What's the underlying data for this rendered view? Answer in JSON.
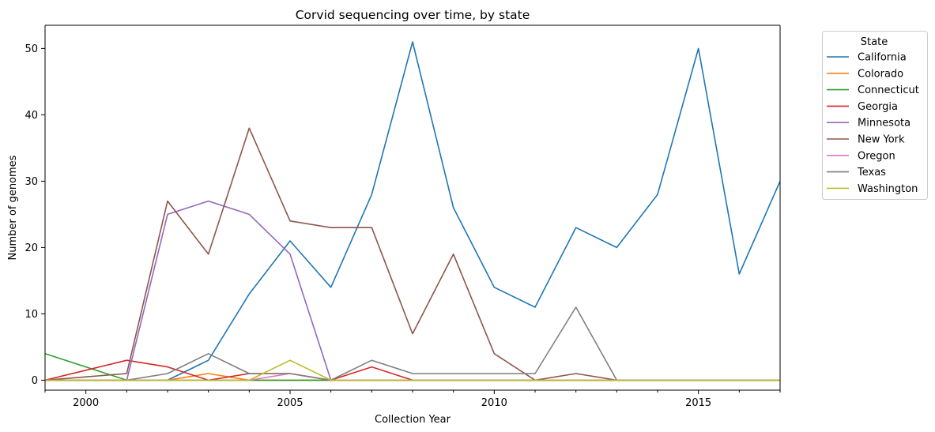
{
  "chart_data": {
    "type": "line",
    "title": "Corvid sequencing over time, by state",
    "xlabel": "Collection Year",
    "ylabel": "Number of genomes",
    "xlim": [
      1999,
      2017
    ],
    "ylim": [
      -1.5,
      53.5
    ],
    "x_ticks": [
      2000,
      2005,
      2010,
      2015
    ],
    "y_ticks": [
      0,
      10,
      20,
      30,
      40,
      50
    ],
    "legend_title": "State",
    "legend_position": "outside right, top",
    "grid": false,
    "x": [
      1999,
      2000,
      2001,
      2002,
      2003,
      2004,
      2005,
      2006,
      2007,
      2008,
      2009,
      2010,
      2011,
      2012,
      2013,
      2014,
      2015,
      2016,
      2017
    ],
    "series": [
      {
        "name": "California",
        "color": "#1f77b4",
        "values": [
          0,
          0,
          0,
          0,
          3,
          13,
          21,
          14,
          28,
          51,
          26,
          14,
          11,
          23,
          20,
          28,
          50,
          16,
          30
        ]
      },
      {
        "name": "Colorado",
        "color": "#ff7f0e",
        "values": [
          0,
          0,
          0,
          0,
          1,
          0,
          0,
          0,
          0,
          0,
          0,
          0,
          0,
          0,
          0,
          0,
          0,
          0,
          0
        ]
      },
      {
        "name": "Connecticut",
        "color": "#2ca02c",
        "values": [
          4,
          2,
          0,
          0,
          0,
          0,
          0,
          0,
          0,
          0,
          0,
          0,
          0,
          0,
          0,
          0,
          0,
          0,
          0
        ]
      },
      {
        "name": "Georgia",
        "color": "#d62728",
        "values": [
          0,
          1.5,
          3,
          2,
          0,
          1,
          1,
          0,
          2,
          0,
          0,
          0,
          0,
          0,
          0,
          0,
          0,
          0,
          0
        ]
      },
      {
        "name": "Minnesota",
        "color": "#9467bd",
        "values": [
          0,
          0,
          0,
          25,
          27,
          25,
          19,
          0,
          0,
          0,
          0,
          0,
          0,
          0,
          0,
          0,
          0,
          0,
          0
        ]
      },
      {
        "name": "New York",
        "color": "#8c564b",
        "values": [
          0,
          0.5,
          1,
          27,
          19,
          38,
          24,
          23,
          23,
          7,
          19,
          4,
          0,
          1,
          0,
          0,
          0,
          0,
          0
        ]
      },
      {
        "name": "Oregon",
        "color": "#e377c2",
        "values": [
          0,
          0,
          0,
          0,
          0,
          0,
          1,
          0,
          0,
          0,
          0,
          0,
          0,
          0,
          0,
          0,
          0,
          0,
          0
        ]
      },
      {
        "name": "Texas",
        "color": "#7f7f7f",
        "values": [
          0,
          0,
          0,
          1,
          4,
          1,
          1,
          0,
          3,
          1,
          1,
          1,
          1,
          11,
          0,
          0,
          0,
          0,
          0
        ]
      },
      {
        "name": "Washington",
        "color": "#bcbd22",
        "values": [
          0,
          0,
          0,
          0,
          0,
          0,
          3,
          0,
          0,
          0,
          0,
          0,
          0,
          0,
          0,
          0,
          0,
          0,
          0
        ]
      }
    ]
  }
}
